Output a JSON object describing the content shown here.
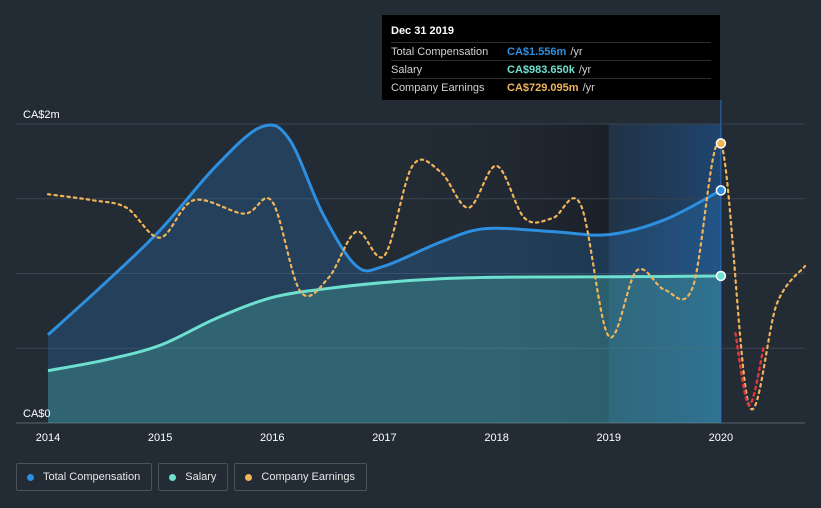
{
  "chart_data": {
    "type": "area",
    "currency": "CA$",
    "y_ticks": [
      {
        "value": 2.0,
        "label": "CA$2m"
      },
      {
        "value": 0,
        "label": "CA$0"
      }
    ],
    "ylim": [
      0,
      2.0
    ],
    "xlim": [
      2014.0,
      2020.75
    ],
    "x_ticks": [
      {
        "value": 2014,
        "label": "2014"
      },
      {
        "value": 2015,
        "label": "2015"
      },
      {
        "value": 2016,
        "label": "2016"
      },
      {
        "value": 2017,
        "label": "2017"
      },
      {
        "value": 2018,
        "label": "2018"
      },
      {
        "value": 2019,
        "label": "2019"
      },
      {
        "value": 2020,
        "label": "2020"
      }
    ],
    "grid": true,
    "series": [
      {
        "key": "total",
        "name": "Total Compensation",
        "color": "#2d8fe0",
        "points": [
          [
            2014.0,
            0.59
          ],
          [
            2014.5,
            0.93
          ],
          [
            2015.0,
            1.29
          ],
          [
            2015.5,
            1.72
          ],
          [
            2015.9,
            1.98
          ],
          [
            2016.15,
            1.9
          ],
          [
            2016.45,
            1.4
          ],
          [
            2016.75,
            1.05
          ],
          [
            2017.0,
            1.05
          ],
          [
            2017.5,
            1.21
          ],
          [
            2017.9,
            1.3
          ],
          [
            2018.5,
            1.28
          ],
          [
            2019.0,
            1.26
          ],
          [
            2019.5,
            1.36
          ],
          [
            2020.0,
            1.556
          ]
        ]
      },
      {
        "key": "salary",
        "name": "Salary",
        "color": "#6ee0d0",
        "points": [
          [
            2014.0,
            0.35
          ],
          [
            2014.5,
            0.42
          ],
          [
            2015.0,
            0.52
          ],
          [
            2015.5,
            0.7
          ],
          [
            2016.0,
            0.84
          ],
          [
            2016.5,
            0.9
          ],
          [
            2017.0,
            0.94
          ],
          [
            2017.5,
            0.965
          ],
          [
            2018.0,
            0.975
          ],
          [
            2018.5,
            0.977
          ],
          [
            2019.0,
            0.978
          ],
          [
            2019.5,
            0.98
          ],
          [
            2020.0,
            0.98365
          ]
        ]
      },
      {
        "key": "earnings",
        "name": "Company Earnings",
        "color": "#f0b45a",
        "points": [
          [
            2014.0,
            1.53
          ],
          [
            2014.4,
            1.49
          ],
          [
            2014.7,
            1.44
          ],
          [
            2015.0,
            1.24
          ],
          [
            2015.3,
            1.49
          ],
          [
            2015.75,
            1.4
          ],
          [
            2016.0,
            1.48
          ],
          [
            2016.25,
            0.88
          ],
          [
            2016.5,
            0.97
          ],
          [
            2016.75,
            1.28
          ],
          [
            2017.0,
            1.12
          ],
          [
            2017.25,
            1.72
          ],
          [
            2017.5,
            1.68
          ],
          [
            2017.75,
            1.44
          ],
          [
            2018.0,
            1.72
          ],
          [
            2018.25,
            1.37
          ],
          [
            2018.5,
            1.37
          ],
          [
            2018.75,
            1.46
          ],
          [
            2019.0,
            0.58
          ],
          [
            2019.25,
            1.02
          ],
          [
            2019.5,
            0.89
          ],
          [
            2019.75,
            0.91
          ],
          [
            2020.0,
            1.87
          ],
          [
            2020.25,
            0.12
          ],
          [
            2020.5,
            0.8
          ],
          [
            2020.75,
            1.05
          ]
        ],
        "negative_color": "#e0363e",
        "negative_below": 0.5
      }
    ],
    "forecast_band": {
      "from": 2019.0,
      "to": 2020.0
    },
    "highlight_x": 2020.0,
    "tooltip": {
      "date": "Dec 31 2019",
      "rows": [
        {
          "label": "Total Compensation",
          "value": "CA$1.556m",
          "unit": "/yr",
          "color": "#2d8fe0"
        },
        {
          "label": "Salary",
          "value": "CA$983.650k",
          "unit": "/yr",
          "color": "#6ee0d0"
        },
        {
          "label": "Company Earnings",
          "value": "CA$729.095m",
          "unit": "/yr",
          "color": "#f0b45a"
        }
      ]
    }
  },
  "legend": [
    {
      "label": "Total Compensation",
      "color": "#2d8fe0"
    },
    {
      "label": "Salary",
      "color": "#6ee0d0"
    },
    {
      "label": "Company Earnings",
      "color": "#f0b45a"
    }
  ]
}
